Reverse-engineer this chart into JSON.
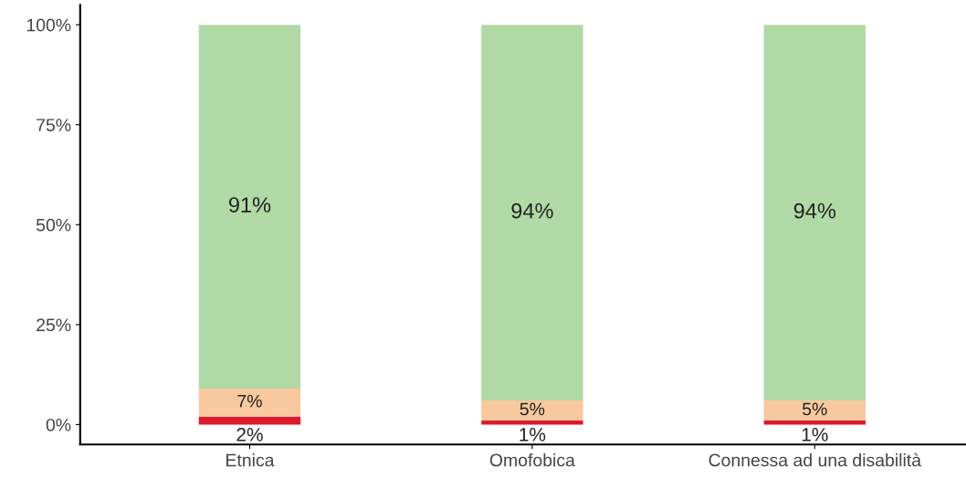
{
  "chart_data": {
    "type": "bar",
    "stacked": true,
    "categories": [
      "Etnica",
      "Omofobica",
      "Connessa ad una disabilità"
    ],
    "series": [
      {
        "color": "#e0182d",
        "values": [
          2,
          1,
          1
        ],
        "value_labels": [
          "2%",
          "1%",
          "1%"
        ]
      },
      {
        "color": "#f8c89f",
        "values": [
          7,
          5,
          5
        ],
        "value_labels": [
          "7%",
          "5%",
          "5%"
        ]
      },
      {
        "color": "#b1d9a5",
        "values": [
          91,
          94,
          94
        ],
        "value_labels": [
          "91%",
          "94%",
          "94%"
        ]
      }
    ],
    "ylim": [
      -5,
      105
    ],
    "yticks": [
      {
        "value": 0,
        "label": "0%"
      },
      {
        "value": 25,
        "label": "25%"
      },
      {
        "value": 50,
        "label": "50%"
      },
      {
        "value": 75,
        "label": "75%"
      },
      {
        "value": 100,
        "label": "100%"
      }
    ],
    "grid": false,
    "legend": false
  }
}
